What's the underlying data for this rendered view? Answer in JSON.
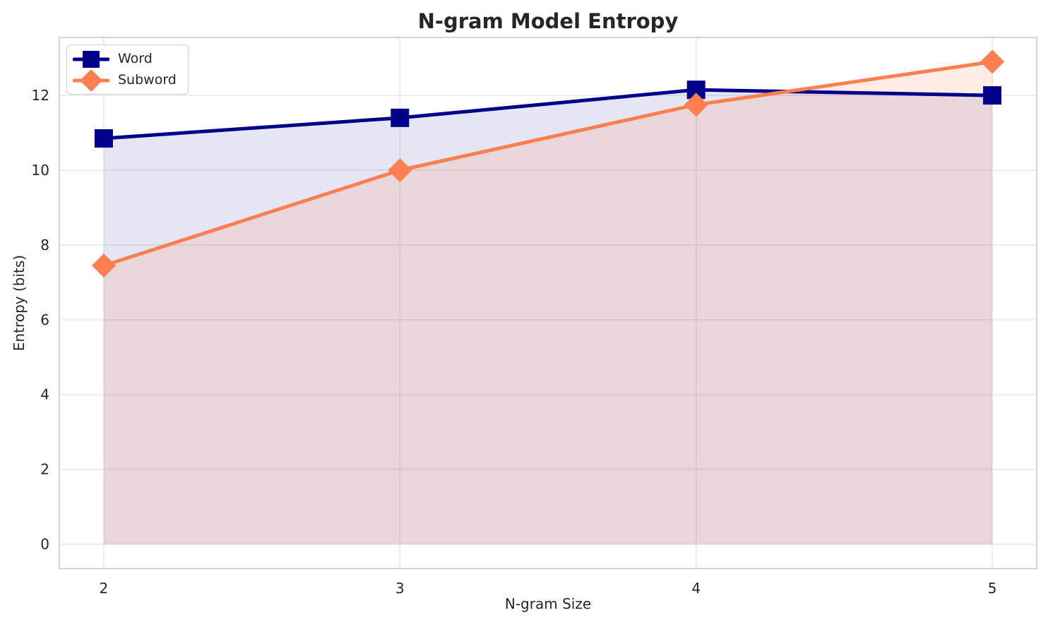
{
  "chart_data": {
    "type": "line",
    "title": "N-gram Model Entropy",
    "xlabel": "N-gram Size",
    "ylabel": "Entropy (bits)",
    "x": [
      2,
      3,
      4,
      5
    ],
    "series": [
      {
        "name": "Word",
        "color": "#00008B",
        "marker": "square",
        "values": [
          10.85,
          11.4,
          12.15,
          12.0
        ],
        "fill_alpha": 0.1,
        "fill_to": 0
      },
      {
        "name": "Subword",
        "color": "#FF7F50",
        "marker": "diamond",
        "values": [
          7.45,
          10.0,
          11.75,
          12.9
        ],
        "fill_alpha": 0.15,
        "fill_to": 0
      }
    ],
    "xticks": [
      2,
      3,
      4,
      5
    ],
    "yticks": [
      0,
      2,
      4,
      6,
      8,
      10,
      12
    ],
    "xlim": [
      1.85,
      5.15
    ],
    "ylim": [
      -0.65,
      13.55
    ],
    "grid": true,
    "legend_position": "upper left"
  },
  "colors": {
    "grid": "#E7E7E7",
    "spine": "#CFCFCF",
    "text": "#262626",
    "background": "#FFFFFF"
  }
}
